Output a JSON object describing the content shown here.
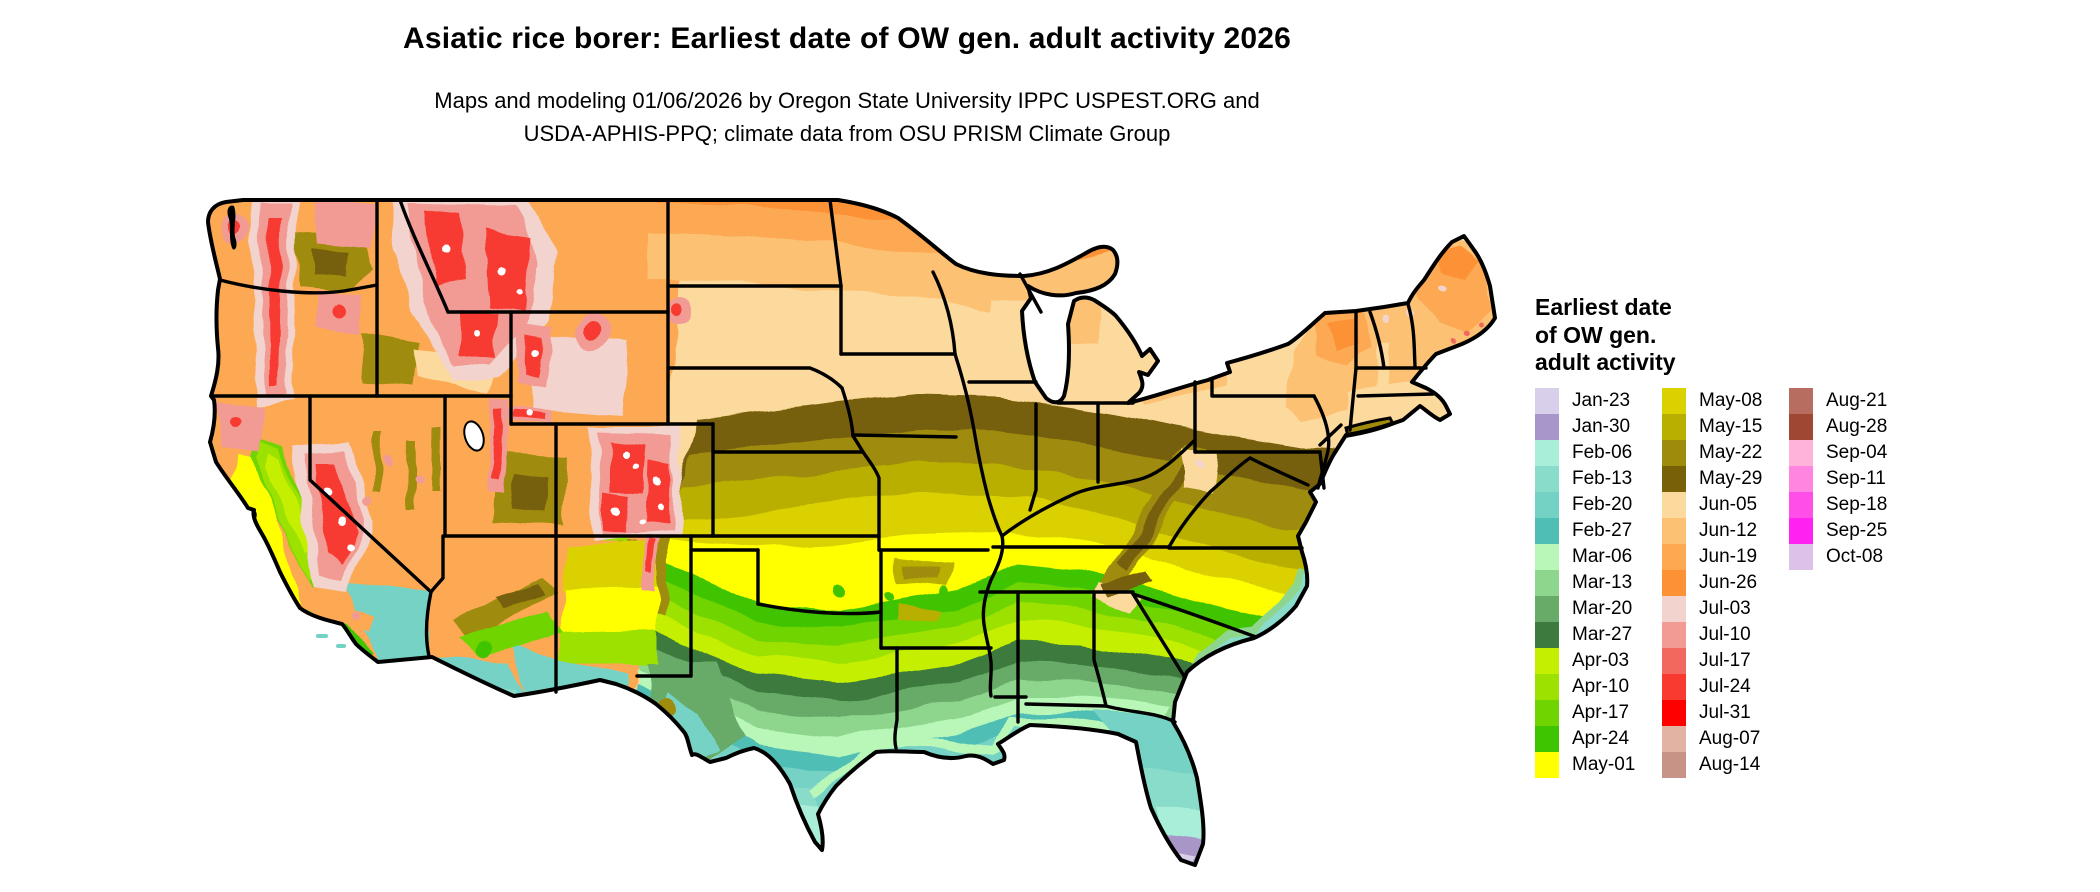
{
  "title": "Asiatic rice borer: Earliest date of OW gen. adult activity 2026",
  "subtitle_line1": "Maps and modeling 01/06/2026 by Oregon State University IPPC USPEST.ORG and",
  "subtitle_line2": "USDA-APHIS-PPQ; climate data from OSU PRISM Climate Group",
  "legend": {
    "title_lines": [
      "Earliest date",
      "of OW gen.",
      "adult activity"
    ],
    "columns": [
      [
        {
          "date": "Jan-23",
          "color": "#d8d0ea"
        },
        {
          "date": "Jan-30",
          "color": "#a996c9"
        },
        {
          "date": "Feb-06",
          "color": "#a9eed9"
        },
        {
          "date": "Feb-13",
          "color": "#8adcca"
        },
        {
          "date": "Feb-20",
          "color": "#74d2c5"
        },
        {
          "date": "Feb-27",
          "color": "#4fbfb5"
        },
        {
          "date": "Mar-06",
          "color": "#b9f7b9"
        },
        {
          "date": "Mar-13",
          "color": "#8ed68e"
        },
        {
          "date": "Mar-20",
          "color": "#68aa68"
        },
        {
          "date": "Mar-27",
          "color": "#3d7a3d"
        },
        {
          "date": "Apr-03",
          "color": "#c4ef00"
        },
        {
          "date": "Apr-10",
          "color": "#9ce100"
        },
        {
          "date": "Apr-17",
          "color": "#70d400"
        },
        {
          "date": "Apr-24",
          "color": "#3fc400"
        },
        {
          "date": "May-01",
          "color": "#ffff00"
        }
      ],
      [
        {
          "date": "May-08",
          "color": "#dcd100"
        },
        {
          "date": "May-15",
          "color": "#b9af00"
        },
        {
          "date": "May-22",
          "color": "#9f8b0b"
        },
        {
          "date": "May-29",
          "color": "#776008"
        },
        {
          "date": "Jun-05",
          "color": "#fcd99c"
        },
        {
          "date": "Jun-12",
          "color": "#fcc173"
        },
        {
          "date": "Jun-19",
          "color": "#fda952"
        },
        {
          "date": "Jun-26",
          "color": "#fc9136"
        },
        {
          "date": "Jul-03",
          "color": "#f2d3cd"
        },
        {
          "date": "Jul-10",
          "color": "#f19b94"
        },
        {
          "date": "Jul-17",
          "color": "#f2685f"
        },
        {
          "date": "Jul-24",
          "color": "#f83a31"
        },
        {
          "date": "Jul-31",
          "color": "#ff0000"
        },
        {
          "date": "Aug-07",
          "color": "#e2b3a2"
        },
        {
          "date": "Aug-14",
          "color": "#c79387"
        }
      ],
      [
        {
          "date": "Aug-21",
          "color": "#b76e61"
        },
        {
          "date": "Aug-28",
          "color": "#a04733"
        },
        {
          "date": "Sep-04",
          "color": "#ffb3da"
        },
        {
          "date": "Sep-11",
          "color": "#ff85e0"
        },
        {
          "date": "Sep-18",
          "color": "#ff4fe8"
        },
        {
          "date": "Sep-25",
          "color": "#ff22f0"
        },
        {
          "date": "Oct-08",
          "color": "#dec1e8"
        }
      ]
    ]
  }
}
